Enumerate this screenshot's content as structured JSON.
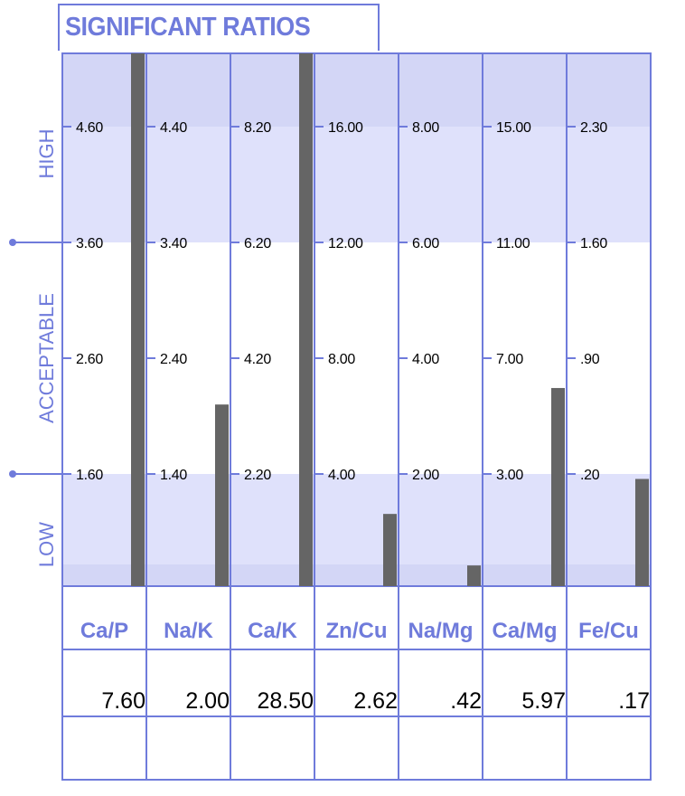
{
  "title": "SIGNIFICANT RATIOS",
  "colors": {
    "border": "#6f7bdb",
    "band_high": "#dfe1fb",
    "band_top": "#d3d6f6",
    "band_low": "#dfe1fb",
    "band_bottom": "#d3d6f6",
    "bar": "#656565",
    "label": "#6f7bdb",
    "tick_text": "#000000"
  },
  "zones": {
    "high": "HIGH",
    "acceptable": "ACCEPTABLE",
    "low": "LOW"
  },
  "chart_data": {
    "type": "bar",
    "title": "SIGNIFICANT RATIOS",
    "categories": [
      "Ca/P",
      "Na/K",
      "Ca/K",
      "Zn/Cu",
      "Na/Mg",
      "Ca/Mg",
      "Fe/Cu"
    ],
    "values": [
      "7.60",
      "2.00",
      "28.50",
      "2.62",
      ".42",
      "5.97",
      ".17"
    ],
    "numeric_values": [
      7.6,
      2.0,
      28.5,
      2.62,
      0.42,
      5.97,
      0.17
    ],
    "ticks": [
      [
        "4.60",
        "3.60",
        "2.60",
        "1.60"
      ],
      [
        "4.40",
        "3.40",
        "2.40",
        "1.40"
      ],
      [
        "8.20",
        "6.20",
        "4.20",
        "2.20"
      ],
      [
        "16.00",
        "12.00",
        "8.00",
        "4.00"
      ],
      [
        "8.00",
        "6.00",
        "4.00",
        "2.00"
      ],
      [
        "15.00",
        "11.00",
        "7.00",
        "3.00"
      ],
      [
        "2.30",
        "1.60",
        ".90",
        ".20"
      ]
    ],
    "tick_values": [
      [
        4.6,
        3.6,
        2.6,
        1.6
      ],
      [
        4.4,
        3.4,
        2.4,
        1.4
      ],
      [
        8.2,
        6.2,
        4.2,
        2.2
      ],
      [
        16.0,
        12.0,
        8.0,
        4.0
      ],
      [
        8.0,
        6.0,
        4.0,
        2.0
      ],
      [
        15.0,
        11.0,
        7.0,
        3.0
      ],
      [
        2.3,
        1.6,
        0.9,
        0.2
      ]
    ],
    "zones": [
      "HIGH",
      "ACCEPTABLE",
      "LOW"
    ]
  }
}
